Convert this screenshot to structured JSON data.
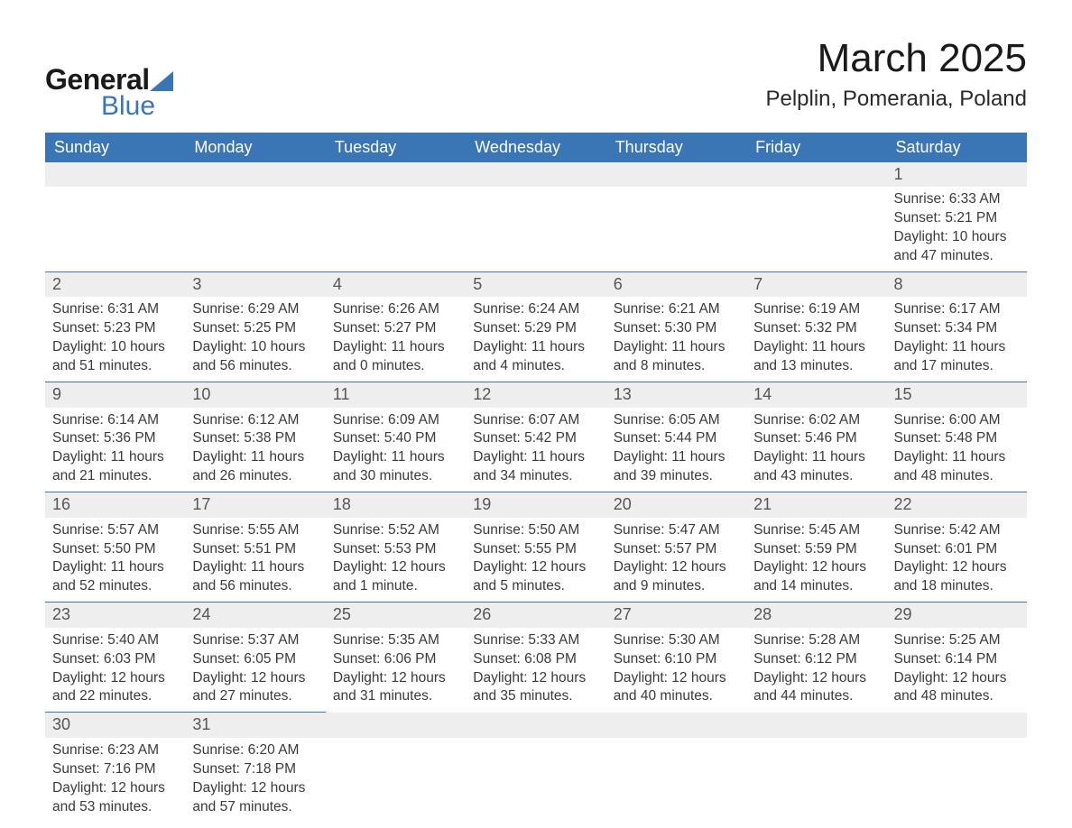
{
  "logo": {
    "text1": "General",
    "text2": "Blue",
    "triangle_color": "#3a75b5"
  },
  "title": "March 2025",
  "location": "Pelplin, Pomerania, Poland",
  "colors": {
    "header_bg": "#3a75b5",
    "header_fg": "#ffffff",
    "daynum_bg": "#eeeeee",
    "row_divider": "#3a75b5",
    "text": "#3a3a3a"
  },
  "day_headers": [
    "Sunday",
    "Monday",
    "Tuesday",
    "Wednesday",
    "Thursday",
    "Friday",
    "Saturday"
  ],
  "weeks": [
    [
      null,
      null,
      null,
      null,
      null,
      null,
      {
        "n": "1",
        "sr": "Sunrise: 6:33 AM",
        "ss": "Sunset: 5:21 PM",
        "d1": "Daylight: 10 hours",
        "d2": "and 47 minutes."
      }
    ],
    [
      {
        "n": "2",
        "sr": "Sunrise: 6:31 AM",
        "ss": "Sunset: 5:23 PM",
        "d1": "Daylight: 10 hours",
        "d2": "and 51 minutes."
      },
      {
        "n": "3",
        "sr": "Sunrise: 6:29 AM",
        "ss": "Sunset: 5:25 PM",
        "d1": "Daylight: 10 hours",
        "d2": "and 56 minutes."
      },
      {
        "n": "4",
        "sr": "Sunrise: 6:26 AM",
        "ss": "Sunset: 5:27 PM",
        "d1": "Daylight: 11 hours",
        "d2": "and 0 minutes."
      },
      {
        "n": "5",
        "sr": "Sunrise: 6:24 AM",
        "ss": "Sunset: 5:29 PM",
        "d1": "Daylight: 11 hours",
        "d2": "and 4 minutes."
      },
      {
        "n": "6",
        "sr": "Sunrise: 6:21 AM",
        "ss": "Sunset: 5:30 PM",
        "d1": "Daylight: 11 hours",
        "d2": "and 8 minutes."
      },
      {
        "n": "7",
        "sr": "Sunrise: 6:19 AM",
        "ss": "Sunset: 5:32 PM",
        "d1": "Daylight: 11 hours",
        "d2": "and 13 minutes."
      },
      {
        "n": "8",
        "sr": "Sunrise: 6:17 AM",
        "ss": "Sunset: 5:34 PM",
        "d1": "Daylight: 11 hours",
        "d2": "and 17 minutes."
      }
    ],
    [
      {
        "n": "9",
        "sr": "Sunrise: 6:14 AM",
        "ss": "Sunset: 5:36 PM",
        "d1": "Daylight: 11 hours",
        "d2": "and 21 minutes."
      },
      {
        "n": "10",
        "sr": "Sunrise: 6:12 AM",
        "ss": "Sunset: 5:38 PM",
        "d1": "Daylight: 11 hours",
        "d2": "and 26 minutes."
      },
      {
        "n": "11",
        "sr": "Sunrise: 6:09 AM",
        "ss": "Sunset: 5:40 PM",
        "d1": "Daylight: 11 hours",
        "d2": "and 30 minutes."
      },
      {
        "n": "12",
        "sr": "Sunrise: 6:07 AM",
        "ss": "Sunset: 5:42 PM",
        "d1": "Daylight: 11 hours",
        "d2": "and 34 minutes."
      },
      {
        "n": "13",
        "sr": "Sunrise: 6:05 AM",
        "ss": "Sunset: 5:44 PM",
        "d1": "Daylight: 11 hours",
        "d2": "and 39 minutes."
      },
      {
        "n": "14",
        "sr": "Sunrise: 6:02 AM",
        "ss": "Sunset: 5:46 PM",
        "d1": "Daylight: 11 hours",
        "d2": "and 43 minutes."
      },
      {
        "n": "15",
        "sr": "Sunrise: 6:00 AM",
        "ss": "Sunset: 5:48 PM",
        "d1": "Daylight: 11 hours",
        "d2": "and 48 minutes."
      }
    ],
    [
      {
        "n": "16",
        "sr": "Sunrise: 5:57 AM",
        "ss": "Sunset: 5:50 PM",
        "d1": "Daylight: 11 hours",
        "d2": "and 52 minutes."
      },
      {
        "n": "17",
        "sr": "Sunrise: 5:55 AM",
        "ss": "Sunset: 5:51 PM",
        "d1": "Daylight: 11 hours",
        "d2": "and 56 minutes."
      },
      {
        "n": "18",
        "sr": "Sunrise: 5:52 AM",
        "ss": "Sunset: 5:53 PM",
        "d1": "Daylight: 12 hours",
        "d2": "and 1 minute."
      },
      {
        "n": "19",
        "sr": "Sunrise: 5:50 AM",
        "ss": "Sunset: 5:55 PM",
        "d1": "Daylight: 12 hours",
        "d2": "and 5 minutes."
      },
      {
        "n": "20",
        "sr": "Sunrise: 5:47 AM",
        "ss": "Sunset: 5:57 PM",
        "d1": "Daylight: 12 hours",
        "d2": "and 9 minutes."
      },
      {
        "n": "21",
        "sr": "Sunrise: 5:45 AM",
        "ss": "Sunset: 5:59 PM",
        "d1": "Daylight: 12 hours",
        "d2": "and 14 minutes."
      },
      {
        "n": "22",
        "sr": "Sunrise: 5:42 AM",
        "ss": "Sunset: 6:01 PM",
        "d1": "Daylight: 12 hours",
        "d2": "and 18 minutes."
      }
    ],
    [
      {
        "n": "23",
        "sr": "Sunrise: 5:40 AM",
        "ss": "Sunset: 6:03 PM",
        "d1": "Daylight: 12 hours",
        "d2": "and 22 minutes."
      },
      {
        "n": "24",
        "sr": "Sunrise: 5:37 AM",
        "ss": "Sunset: 6:05 PM",
        "d1": "Daylight: 12 hours",
        "d2": "and 27 minutes."
      },
      {
        "n": "25",
        "sr": "Sunrise: 5:35 AM",
        "ss": "Sunset: 6:06 PM",
        "d1": "Daylight: 12 hours",
        "d2": "and 31 minutes."
      },
      {
        "n": "26",
        "sr": "Sunrise: 5:33 AM",
        "ss": "Sunset: 6:08 PM",
        "d1": "Daylight: 12 hours",
        "d2": "and 35 minutes."
      },
      {
        "n": "27",
        "sr": "Sunrise: 5:30 AM",
        "ss": "Sunset: 6:10 PM",
        "d1": "Daylight: 12 hours",
        "d2": "and 40 minutes."
      },
      {
        "n": "28",
        "sr": "Sunrise: 5:28 AM",
        "ss": "Sunset: 6:12 PM",
        "d1": "Daylight: 12 hours",
        "d2": "and 44 minutes."
      },
      {
        "n": "29",
        "sr": "Sunrise: 5:25 AM",
        "ss": "Sunset: 6:14 PM",
        "d1": "Daylight: 12 hours",
        "d2": "and 48 minutes."
      }
    ],
    [
      {
        "n": "30",
        "sr": "Sunrise: 6:23 AM",
        "ss": "Sunset: 7:16 PM",
        "d1": "Daylight: 12 hours",
        "d2": "and 53 minutes."
      },
      {
        "n": "31",
        "sr": "Sunrise: 6:20 AM",
        "ss": "Sunset: 7:18 PM",
        "d1": "Daylight: 12 hours",
        "d2": "and 57 minutes."
      },
      null,
      null,
      null,
      null,
      null
    ]
  ]
}
